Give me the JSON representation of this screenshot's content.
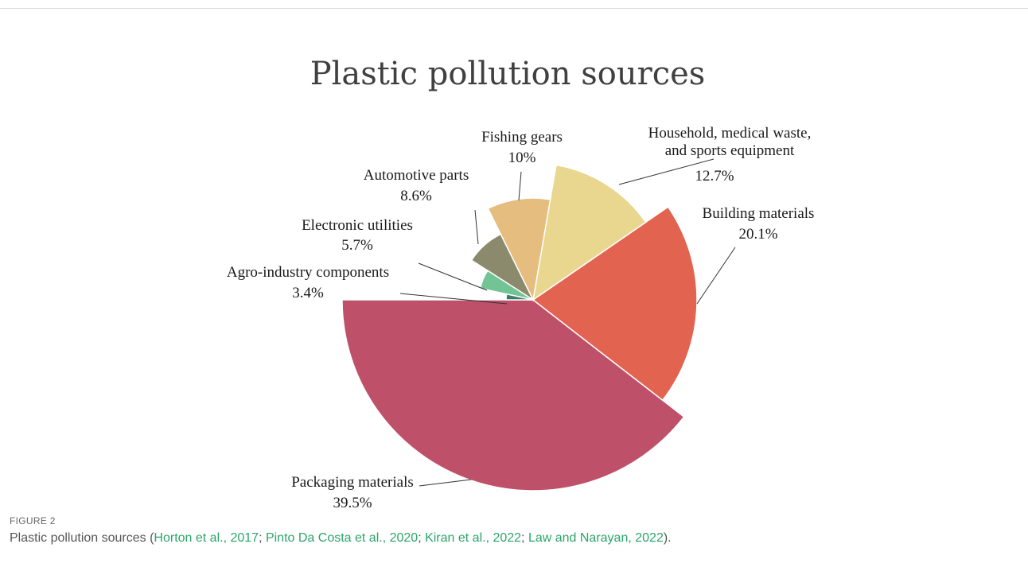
{
  "chart_data": {
    "type": "pie",
    "title": "Plastic pollution sources",
    "slices": [
      {
        "label": "Packaging materials",
        "value_label": "39.5%",
        "value": 39.5,
        "color": "#be5069",
        "exploded": true
      },
      {
        "label": "Building materials",
        "value_label": "20.1%",
        "value": 20.1,
        "color": "#e26350",
        "exploded": true
      },
      {
        "label_lines": [
          "Household, medical waste,",
          "and sports equipment"
        ],
        "value_label": "12.7%",
        "value": 12.7,
        "color": "#e9d68f",
        "exploded": true
      },
      {
        "label": "Fishing gears",
        "value_label": "10%",
        "value": 10,
        "color": "#e4bd7f",
        "exploded": true
      },
      {
        "label": "Automotive parts",
        "value_label": "8.6%",
        "value": 8.6,
        "color": "#8c8a6c",
        "exploded": true
      },
      {
        "label": "Electronic utilities",
        "value_label": "5.7%",
        "value": 5.7,
        "color": "#72c495",
        "exploded": true
      },
      {
        "label": "Agro-industry components",
        "value_label": "3.4%",
        "value": 3.4,
        "color": "#3f7b68",
        "exploded": true
      }
    ]
  },
  "caption": {
    "figure_label": "FIGURE 2",
    "prefix": "Plastic pollution sources (",
    "refs": [
      "Horton et al., 2017",
      "Pinto Da Costa et al., 2020",
      "Kiran et al., 2022",
      "Law and Narayan, 2022"
    ],
    "separator": "; ",
    "suffix": ")."
  }
}
